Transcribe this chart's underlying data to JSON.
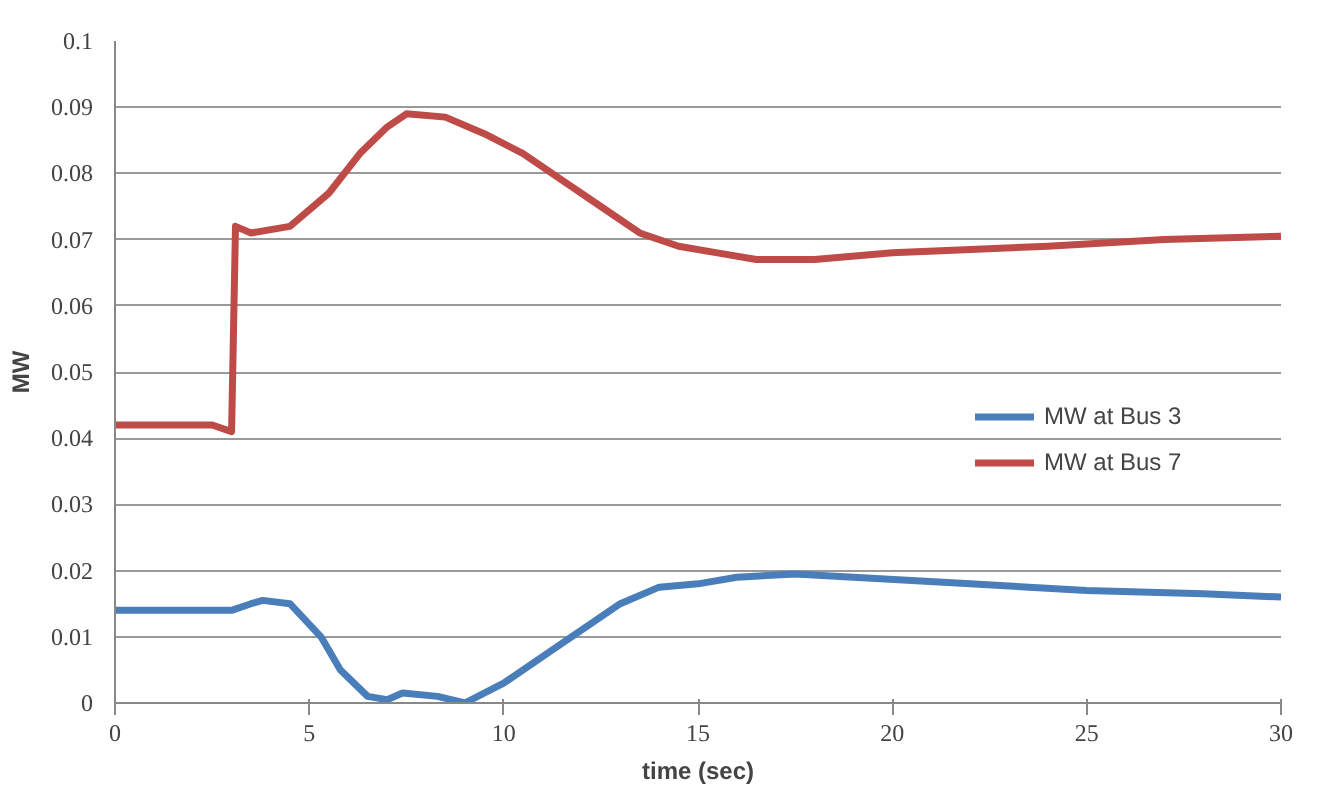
{
  "chart_data": {
    "type": "line",
    "xlabel": "time (sec)",
    "ylabel": "MW",
    "xlim": [
      0,
      30
    ],
    "xticks": [
      0,
      5,
      10,
      15,
      20,
      25,
      30
    ],
    "ylim": [
      0,
      0.1
    ],
    "yticks": [
      0,
      0.01,
      0.02,
      0.03,
      0.04,
      0.05,
      0.06,
      0.07,
      0.08,
      0.09,
      0.1
    ],
    "grid": "y",
    "legend": "right",
    "marker": "none",
    "line_style": "solid",
    "series": [
      {
        "name": "MW at Bus 3",
        "color": "#4a7ebb",
        "x": [
          0,
          3,
          3.5,
          3.8,
          4.5,
          5.3,
          5.8,
          6.5,
          7,
          7.4,
          8.3,
          9,
          10,
          11,
          12,
          13,
          14,
          15,
          16,
          17.5,
          19,
          22,
          25,
          28,
          30
        ],
        "values": [
          0.014,
          0.014,
          0.015,
          0.0155,
          0.015,
          0.01,
          0.005,
          0.001,
          0.0005,
          0.0015,
          0.001,
          0,
          0.003,
          0.007,
          0.011,
          0.015,
          0.0175,
          0.018,
          0.019,
          0.0195,
          0.019,
          0.018,
          0.017,
          0.0165,
          0.016
        ]
      },
      {
        "name": "MW at Bus 7",
        "color": "#be4b48",
        "x": [
          0,
          2.5,
          3,
          3.1,
          3.5,
          4.5,
          5.5,
          6.3,
          7,
          7.5,
          8.5,
          9.5,
          10.5,
          11.5,
          12.5,
          13.5,
          14.5,
          15.5,
          16.5,
          18,
          20,
          24,
          27,
          30
        ],
        "values": [
          0.042,
          0.042,
          0.041,
          0.072,
          0.071,
          0.072,
          0.077,
          0.083,
          0.087,
          0.089,
          0.0885,
          0.086,
          0.083,
          0.079,
          0.075,
          0.071,
          0.069,
          0.068,
          0.067,
          0.067,
          0.068,
          0.069,
          0.07,
          0.0705
        ]
      }
    ]
  }
}
